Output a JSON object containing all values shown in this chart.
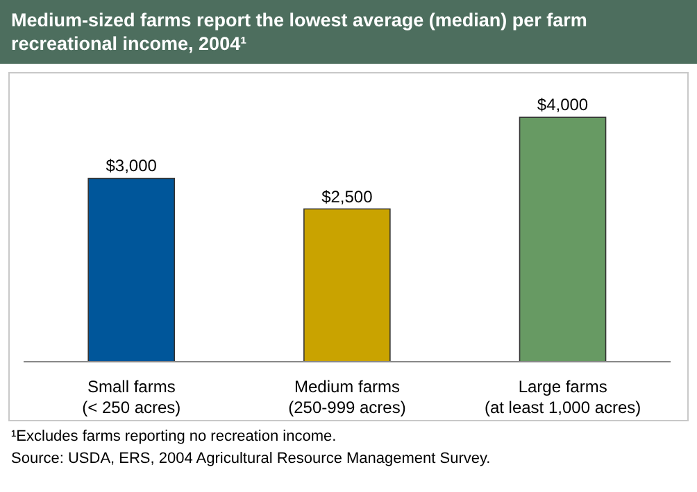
{
  "chart_data": {
    "type": "bar",
    "title": "Medium-sized farms report the lowest average (median) per farm recreational income, 2004¹",
    "categories": [
      "Small farms\n(< 250 acres)",
      "Medium farms\n(250-999 acres)",
      "Large farms\n(at least 1,000 acres)"
    ],
    "values": [
      3000,
      2500,
      4000
    ],
    "colors": [
      "#00569a",
      "#c9a300",
      "#679a63"
    ],
    "value_labels": [
      "$3,000",
      "$2,500",
      "$4,000"
    ],
    "annotations": [
      "¹Excludes farms reporting no recreation income.",
      "Source: USDA, ERS, 2004 Agricultural Resource Management Survey."
    ]
  }
}
